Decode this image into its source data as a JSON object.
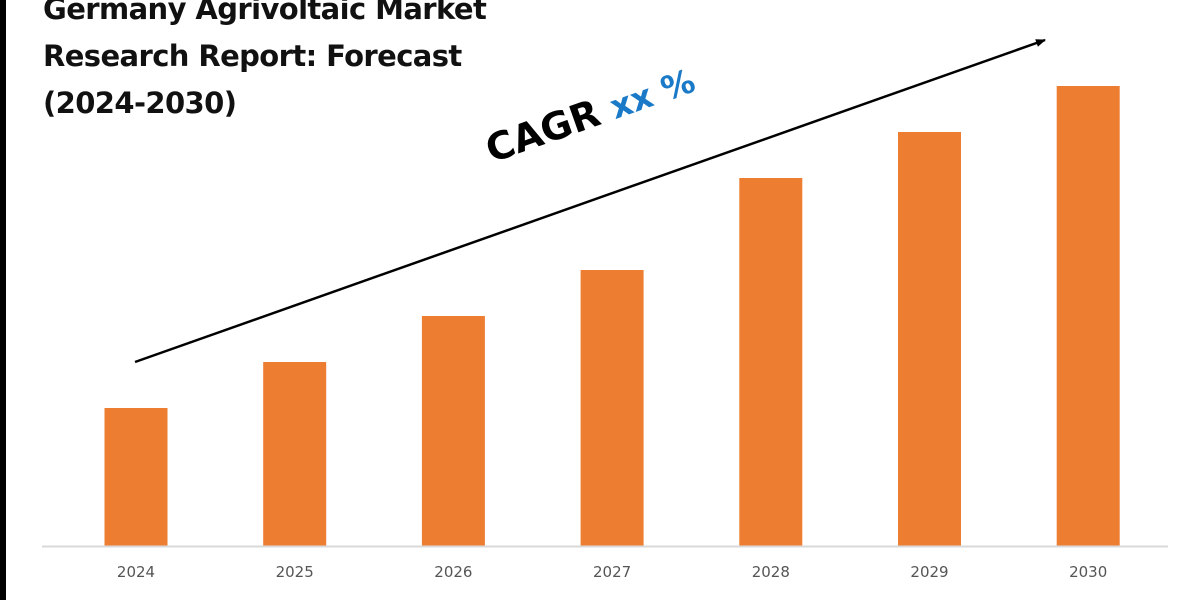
{
  "title_lines": [
    "Germany Agrivoltaic Market",
    "Research Report: Forecast",
    "(2024-2030)"
  ],
  "annotation": {
    "label": "CAGR",
    "value": "xx %",
    "label_color": "#000000",
    "value_color": "#1a7ac8"
  },
  "chart_data": {
    "type": "bar",
    "title": "Germany Agrivoltaic Market Research Report: Forecast (2024-2030)",
    "categories": [
      "2024",
      "2025",
      "2026",
      "2027",
      "2028",
      "2029",
      "2030"
    ],
    "values": [
      30,
      40,
      50,
      60,
      80,
      90,
      100
    ],
    "value_note_relative": true,
    "ylim": [
      0,
      100
    ],
    "xlabel": "",
    "ylabel": "",
    "grid": false,
    "bar_color": "#ed7d31",
    "trend_arrow": true
  }
}
